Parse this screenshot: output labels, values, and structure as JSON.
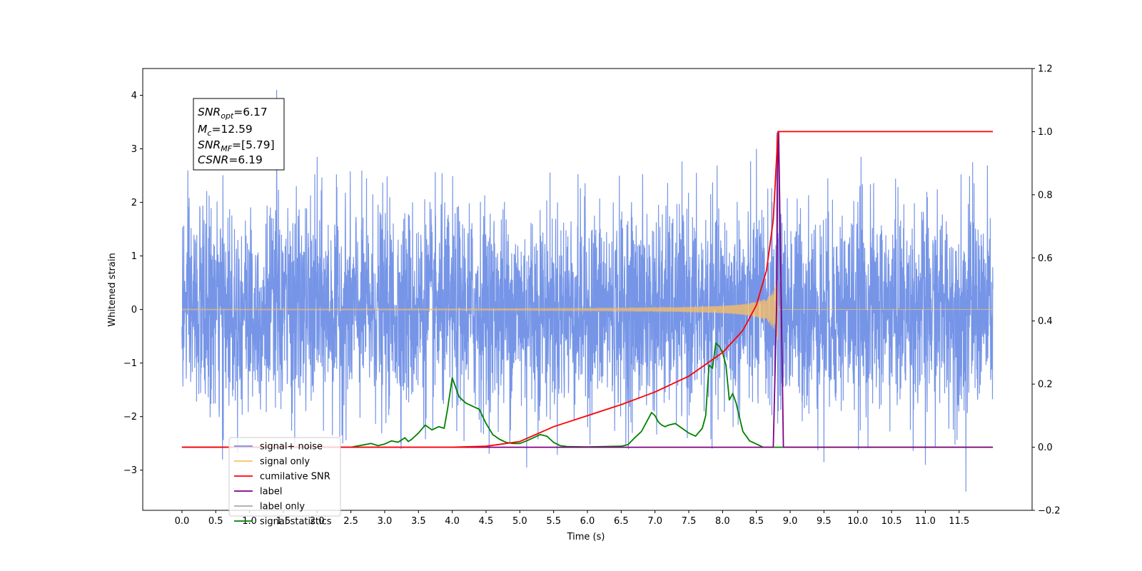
{
  "chart_data": {
    "type": "line",
    "xlabel": "Time (s)",
    "ylabel": "Whitened strain",
    "xlim": [
      -0.58,
      12.58
    ],
    "ylim_left": [
      -3.75,
      4.5
    ],
    "ylim_right": [
      -0.2,
      1.2
    ],
    "x_ticks": [
      "0.0",
      "0.5",
      "1.0",
      "1.5",
      "2.0",
      "2.5",
      "3.0",
      "3.5",
      "4.0",
      "4.5",
      "5.0",
      "5.5",
      "6.0",
      "6.5",
      "7.0",
      "7.5",
      "8.0",
      "8.5",
      "9.0",
      "9.5",
      "10.0",
      "10.5",
      "11.0",
      "11.5"
    ],
    "y_ticks_left": [
      "4",
      "3",
      "2",
      "1",
      "0",
      "−1",
      "−2",
      "−3"
    ],
    "y_ticks_right": [
      "1.2",
      "1.0",
      "0.8",
      "0.6",
      "0.4",
      "0.2",
      "0.0",
      "−0.2"
    ],
    "annotation": {
      "snr_opt": {
        "base": "SNR",
        "sub": "opt",
        "value": "=6.17"
      },
      "mc": {
        "base": "M",
        "sub": "c",
        "value": "=12.59"
      },
      "snr_mf": {
        "base": "SNR",
        "sub": "MF",
        "value": "=[5.79]"
      },
      "csnr": {
        "base": "CSNR",
        "value": "=6.19"
      }
    },
    "legend": {
      "placement": "lower-left",
      "entries": [
        {
          "label": "signal+ noise",
          "color": "#6f8fe6"
        },
        {
          "label": "signal only",
          "color": "#ffc060"
        },
        {
          "label": "cumilative SNR",
          "color": "#ff0000"
        },
        {
          "label": "label",
          "color": "#800080"
        },
        {
          "label": "label only",
          "color": "#aaaaaa"
        },
        {
          "label": "signal statistics",
          "color": "#008000"
        }
      ]
    },
    "series": [
      {
        "name": "signal+ noise",
        "axis": "left",
        "color": "#6f8fe6",
        "x_range": [
          0.0,
          12.0
        ],
        "envelope": {
          "p2p_low": [
            -2.0,
            2.0
          ],
          "typical_band": [
            -1.5,
            1.5
          ]
        },
        "peaks": [
          {
            "x": 1.4,
            "y": 4.1
          },
          {
            "x": 0.6,
            "y": 2.9
          },
          {
            "x": 2.0,
            "y": 2.85
          },
          {
            "x": 8.5,
            "y": 3.0
          },
          {
            "x": 8.8,
            "y": 3.3
          },
          {
            "x": 10.05,
            "y": 2.85
          },
          {
            "x": 11.7,
            "y": 2.75
          },
          {
            "x": 5.1,
            "y": -2.95
          },
          {
            "x": 11.6,
            "y": -3.4
          },
          {
            "x": 11.0,
            "y": -2.9
          },
          {
            "x": 9.5,
            "y": -2.85
          },
          {
            "x": 0.6,
            "y": -2.8
          }
        ]
      },
      {
        "name": "signal only",
        "axis": "left",
        "color": "#ffc060",
        "chirp": {
          "start": 0.0,
          "merger": 8.82,
          "end": 12.0,
          "final_amplitude": 0.62
        }
      },
      {
        "name": "cumilative SNR",
        "axis": "right",
        "color": "#ff0000",
        "x": [
          0.0,
          4.0,
          4.5,
          5.0,
          5.5,
          6.0,
          6.5,
          7.0,
          7.5,
          8.0,
          8.3,
          8.5,
          8.65,
          8.75,
          8.82,
          8.83,
          12.0
        ],
        "y": [
          0.0,
          0.0,
          0.003,
          0.018,
          0.065,
          0.1,
          0.135,
          0.175,
          0.225,
          0.3,
          0.37,
          0.45,
          0.56,
          0.72,
          1.0,
          1.0,
          1.0
        ]
      },
      {
        "name": "label",
        "axis": "right",
        "color": "#800080",
        "x": [
          0.0,
          8.75,
          8.8,
          8.82,
          8.83,
          8.9,
          12.0
        ],
        "y": [
          0.0,
          0.0,
          0.45,
          1.0,
          1.0,
          0.0,
          0.0
        ]
      },
      {
        "name": "signal statistics",
        "axis": "right",
        "color": "#008000",
        "x": [
          0.0,
          2.5,
          2.8,
          2.9,
          3.0,
          3.1,
          3.2,
          3.3,
          3.35,
          3.4,
          3.5,
          3.6,
          3.7,
          3.8,
          3.88,
          3.93,
          4.0,
          4.1,
          4.2,
          4.3,
          4.4,
          4.5,
          4.6,
          4.7,
          4.8,
          4.9,
          5.0,
          5.1,
          5.2,
          5.3,
          5.4,
          5.5,
          5.6,
          5.7,
          6.0,
          6.5,
          6.6,
          6.7,
          6.8,
          6.9,
          6.95,
          7.0,
          7.05,
          7.1,
          7.15,
          7.2,
          7.3,
          7.4,
          7.5,
          7.6,
          7.7,
          7.75,
          7.8,
          7.85,
          7.9,
          7.95,
          8.0,
          8.05,
          8.1,
          8.15,
          8.2,
          8.3,
          8.4,
          8.5,
          8.6,
          8.8,
          12.0
        ],
        "y": [
          0.0,
          0.0,
          0.012,
          0.005,
          0.01,
          0.02,
          0.016,
          0.03,
          0.018,
          0.025,
          0.045,
          0.07,
          0.055,
          0.065,
          0.06,
          0.12,
          0.22,
          0.16,
          0.14,
          0.13,
          0.12,
          0.075,
          0.04,
          0.025,
          0.015,
          0.012,
          0.012,
          0.02,
          0.03,
          0.04,
          0.035,
          0.015,
          0.005,
          0.002,
          0.001,
          0.003,
          0.008,
          0.03,
          0.05,
          0.09,
          0.11,
          0.1,
          0.08,
          0.07,
          0.065,
          0.07,
          0.075,
          0.06,
          0.045,
          0.035,
          0.06,
          0.1,
          0.26,
          0.25,
          0.33,
          0.32,
          0.3,
          0.26,
          0.15,
          0.17,
          0.14,
          0.05,
          0.02,
          0.01,
          0.0,
          0.0,
          0.0
        ]
      }
    ]
  }
}
